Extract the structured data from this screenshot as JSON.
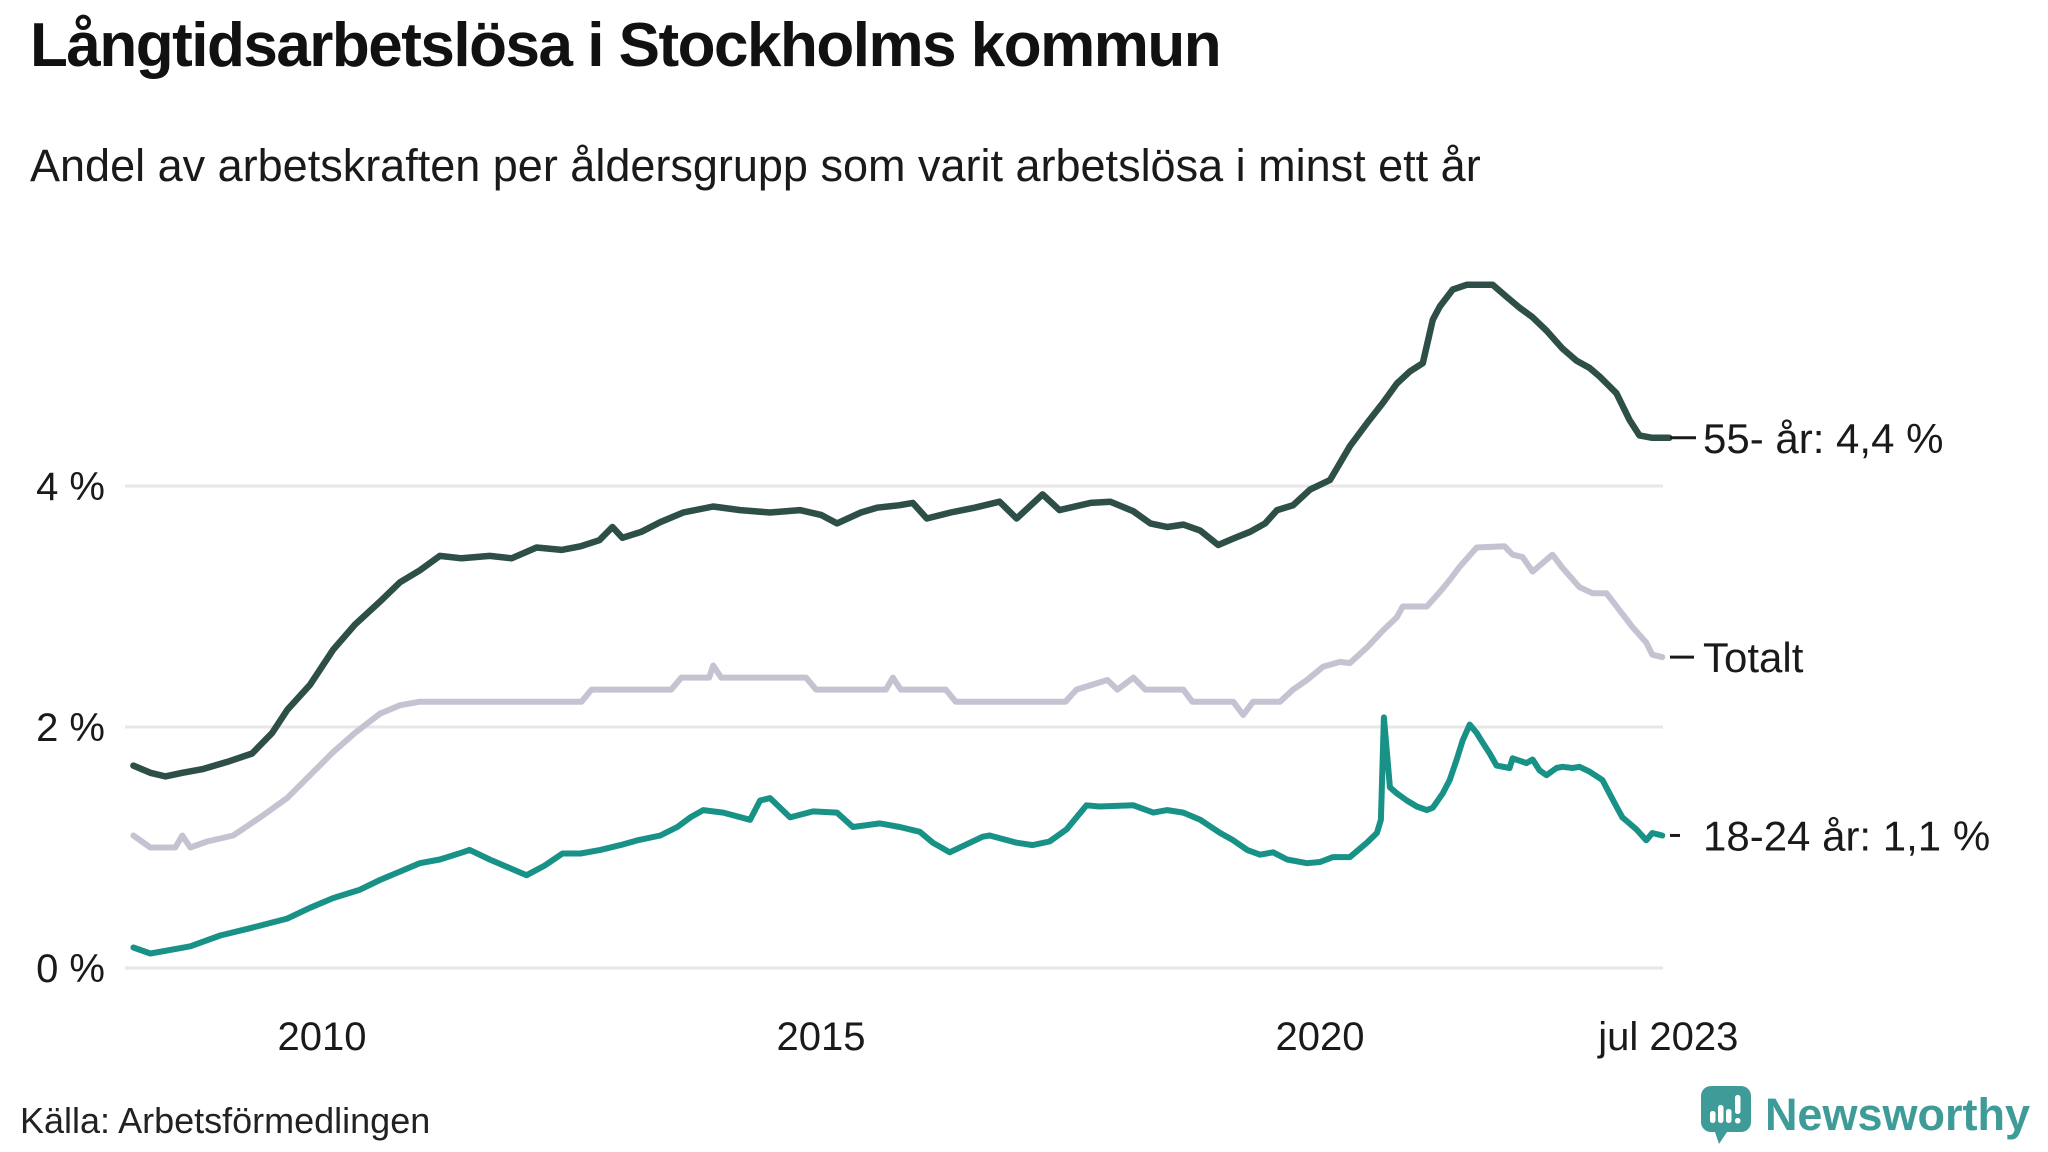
{
  "header": {
    "title": "Långtidsarbetslösa i Stockholms kommun",
    "subtitle": "Andel av arbetskraften per åldersgrupp som varit arbetslösa i minst ett år"
  },
  "footer": {
    "source": "Källa: Arbetsförmedlingen",
    "brand": "Newsworthy"
  },
  "colors": {
    "series_55": "#2e4f47",
    "series_total": "#c5c3d1",
    "series_18_24": "#189286",
    "gridline": "#e7e7ea",
    "text": "#1a1a1a",
    "brand_teal": "#3e9b97"
  },
  "chart_data": {
    "type": "line",
    "title": "Långtidsarbetslösa i Stockholms kommun",
    "subtitle": "Andel av arbetskraften per åldersgrupp som varit arbetslösa i minst ett år",
    "y_unit": "%",
    "ylim": [
      0,
      6.2
    ],
    "x_range": [
      2008.0,
      2023.6
    ],
    "grid": "horizontal-only",
    "legend_position": "line-end-labels",
    "y_ticks": [
      {
        "value": 0,
        "label": "0 %"
      },
      {
        "value": 2,
        "label": "2 %"
      },
      {
        "value": 4,
        "label": "4 %"
      }
    ],
    "x_ticks": [
      {
        "t": 2010,
        "label": "2010"
      },
      {
        "t": 2015,
        "label": "2015"
      },
      {
        "t": 2020,
        "label": "2020"
      },
      {
        "t": 2023.49,
        "label": "jul 2023"
      }
    ],
    "series": [
      {
        "name": "55- år",
        "end_label": "55- år: 4,4 %",
        "current_value": "4,4 %",
        "color": "#2e4f47",
        "points": [
          [
            2008.11,
            1.68
          ],
          [
            2008.28,
            1.62
          ],
          [
            2008.43,
            1.59
          ],
          [
            2008.6,
            1.62
          ],
          [
            2008.8,
            1.65
          ],
          [
            2009.05,
            1.71
          ],
          [
            2009.3,
            1.78
          ],
          [
            2009.5,
            1.95
          ],
          [
            2009.65,
            2.14
          ],
          [
            2009.88,
            2.35
          ],
          [
            2010.11,
            2.64
          ],
          [
            2010.33,
            2.85
          ],
          [
            2010.58,
            3.04
          ],
          [
            2010.78,
            3.2
          ],
          [
            2010.98,
            3.3
          ],
          [
            2011.18,
            3.42
          ],
          [
            2011.4,
            3.4
          ],
          [
            2011.68,
            3.42
          ],
          [
            2011.9,
            3.4
          ],
          [
            2012.15,
            3.49
          ],
          [
            2012.4,
            3.47
          ],
          [
            2012.59,
            3.5
          ],
          [
            2012.78,
            3.55
          ],
          [
            2012.91,
            3.66
          ],
          [
            2013.01,
            3.57
          ],
          [
            2013.2,
            3.62
          ],
          [
            2013.39,
            3.7
          ],
          [
            2013.62,
            3.78
          ],
          [
            2013.92,
            3.83
          ],
          [
            2014.19,
            3.8
          ],
          [
            2014.49,
            3.78
          ],
          [
            2014.79,
            3.8
          ],
          [
            2015.0,
            3.76
          ],
          [
            2015.16,
            3.69
          ],
          [
            2015.4,
            3.78
          ],
          [
            2015.56,
            3.82
          ],
          [
            2015.78,
            3.84
          ],
          [
            2015.92,
            3.86
          ],
          [
            2016.06,
            3.73
          ],
          [
            2016.3,
            3.78
          ],
          [
            2016.54,
            3.82
          ],
          [
            2016.79,
            3.87
          ],
          [
            2016.96,
            3.73
          ],
          [
            2017.22,
            3.93
          ],
          [
            2017.39,
            3.8
          ],
          [
            2017.7,
            3.86
          ],
          [
            2017.9,
            3.87
          ],
          [
            2018.13,
            3.79
          ],
          [
            2018.3,
            3.69
          ],
          [
            2018.47,
            3.66
          ],
          [
            2018.63,
            3.68
          ],
          [
            2018.8,
            3.63
          ],
          [
            2018.98,
            3.51
          ],
          [
            2019.15,
            3.57
          ],
          [
            2019.3,
            3.62
          ],
          [
            2019.45,
            3.69
          ],
          [
            2019.57,
            3.8
          ],
          [
            2019.73,
            3.84
          ],
          [
            2019.9,
            3.97
          ],
          [
            2020.1,
            4.05
          ],
          [
            2020.3,
            4.33
          ],
          [
            2020.47,
            4.52
          ],
          [
            2020.63,
            4.69
          ],
          [
            2020.77,
            4.85
          ],
          [
            2020.9,
            4.95
          ],
          [
            2021.03,
            5.02
          ],
          [
            2021.13,
            5.38
          ],
          [
            2021.2,
            5.49
          ],
          [
            2021.33,
            5.63
          ],
          [
            2021.47,
            5.67
          ],
          [
            2021.73,
            5.67
          ],
          [
            2021.87,
            5.57
          ],
          [
            2022.0,
            5.48
          ],
          [
            2022.13,
            5.4
          ],
          [
            2022.27,
            5.29
          ],
          [
            2022.43,
            5.14
          ],
          [
            2022.57,
            5.04
          ],
          [
            2022.7,
            4.98
          ],
          [
            2022.8,
            4.91
          ],
          [
            2022.97,
            4.77
          ],
          [
            2023.1,
            4.55
          ],
          [
            2023.2,
            4.42
          ],
          [
            2023.33,
            4.4
          ],
          [
            2023.5,
            4.4
          ]
        ]
      },
      {
        "name": "Totalt",
        "end_label": "Totalt",
        "current_value": "2,6 %",
        "color": "#c5c3d1",
        "points": [
          [
            2008.11,
            1.1
          ],
          [
            2008.28,
            1.0
          ],
          [
            2008.53,
            1.0
          ],
          [
            2008.6,
            1.1
          ],
          [
            2008.68,
            1.0
          ],
          [
            2008.85,
            1.05
          ],
          [
            2009.11,
            1.1
          ],
          [
            2009.38,
            1.25
          ],
          [
            2009.65,
            1.41
          ],
          [
            2009.88,
            1.6
          ],
          [
            2010.11,
            1.79
          ],
          [
            2010.33,
            1.95
          ],
          [
            2010.58,
            2.11
          ],
          [
            2010.78,
            2.18
          ],
          [
            2010.98,
            2.21
          ],
          [
            2011.5,
            2.21
          ],
          [
            2012.6,
            2.21
          ],
          [
            2012.7,
            2.31
          ],
          [
            2013.5,
            2.31
          ],
          [
            2013.6,
            2.41
          ],
          [
            2013.88,
            2.41
          ],
          [
            2013.92,
            2.51
          ],
          [
            2014.0,
            2.41
          ],
          [
            2014.85,
            2.41
          ],
          [
            2014.95,
            2.31
          ],
          [
            2015.65,
            2.31
          ],
          [
            2015.72,
            2.41
          ],
          [
            2015.8,
            2.31
          ],
          [
            2016.25,
            2.31
          ],
          [
            2016.35,
            2.21
          ],
          [
            2017.45,
            2.21
          ],
          [
            2017.56,
            2.31
          ],
          [
            2017.87,
            2.39
          ],
          [
            2017.97,
            2.31
          ],
          [
            2018.13,
            2.41
          ],
          [
            2018.25,
            2.31
          ],
          [
            2018.63,
            2.31
          ],
          [
            2018.72,
            2.21
          ],
          [
            2019.13,
            2.21
          ],
          [
            2019.23,
            2.1
          ],
          [
            2019.33,
            2.21
          ],
          [
            2019.6,
            2.21
          ],
          [
            2019.73,
            2.31
          ],
          [
            2019.87,
            2.39
          ],
          [
            2020.03,
            2.5
          ],
          [
            2020.2,
            2.54
          ],
          [
            2020.3,
            2.53
          ],
          [
            2020.47,
            2.66
          ],
          [
            2020.63,
            2.8
          ],
          [
            2020.77,
            2.91
          ],
          [
            2020.83,
            3.0
          ],
          [
            2021.07,
            3.0
          ],
          [
            2021.2,
            3.12
          ],
          [
            2021.3,
            3.22
          ],
          [
            2021.4,
            3.33
          ],
          [
            2021.57,
            3.49
          ],
          [
            2021.85,
            3.5
          ],
          [
            2021.93,
            3.43
          ],
          [
            2022.03,
            3.41
          ],
          [
            2022.13,
            3.29
          ],
          [
            2022.3,
            3.41
          ],
          [
            2022.33,
            3.43
          ],
          [
            2022.43,
            3.32
          ],
          [
            2022.6,
            3.16
          ],
          [
            2022.73,
            3.11
          ],
          [
            2022.87,
            3.11
          ],
          [
            2023.0,
            2.97
          ],
          [
            2023.13,
            2.83
          ],
          [
            2023.27,
            2.7
          ],
          [
            2023.33,
            2.6
          ],
          [
            2023.43,
            2.58
          ]
        ]
      },
      {
        "name": "18-24 år",
        "end_label": "18-24 år: 1,1 %",
        "current_value": "1,1 %",
        "color": "#189286",
        "points": [
          [
            2008.11,
            0.17
          ],
          [
            2008.28,
            0.12
          ],
          [
            2008.48,
            0.15
          ],
          [
            2008.68,
            0.18
          ],
          [
            2008.98,
            0.27
          ],
          [
            2009.28,
            0.33
          ],
          [
            2009.65,
            0.41
          ],
          [
            2009.88,
            0.5
          ],
          [
            2010.11,
            0.58
          ],
          [
            2010.38,
            0.65
          ],
          [
            2010.58,
            0.73
          ],
          [
            2010.78,
            0.8
          ],
          [
            2010.98,
            0.87
          ],
          [
            2011.18,
            0.9
          ],
          [
            2011.41,
            0.96
          ],
          [
            2011.48,
            0.98
          ],
          [
            2011.68,
            0.9
          ],
          [
            2011.88,
            0.83
          ],
          [
            2012.05,
            0.77
          ],
          [
            2012.23,
            0.85
          ],
          [
            2012.41,
            0.95
          ],
          [
            2012.59,
            0.95
          ],
          [
            2012.79,
            0.98
          ],
          [
            2012.99,
            1.02
          ],
          [
            2013.16,
            1.06
          ],
          [
            2013.39,
            1.1
          ],
          [
            2013.56,
            1.17
          ],
          [
            2013.69,
            1.25
          ],
          [
            2013.82,
            1.31
          ],
          [
            2014.02,
            1.29
          ],
          [
            2014.29,
            1.23
          ],
          [
            2014.39,
            1.39
          ],
          [
            2014.49,
            1.41
          ],
          [
            2014.69,
            1.25
          ],
          [
            2014.92,
            1.3
          ],
          [
            2015.16,
            1.29
          ],
          [
            2015.32,
            1.17
          ],
          [
            2015.59,
            1.2
          ],
          [
            2015.79,
            1.17
          ],
          [
            2015.99,
            1.13
          ],
          [
            2016.12,
            1.04
          ],
          [
            2016.29,
            0.96
          ],
          [
            2016.62,
            1.09
          ],
          [
            2016.69,
            1.1
          ],
          [
            2016.96,
            1.04
          ],
          [
            2017.12,
            1.02
          ],
          [
            2017.29,
            1.05
          ],
          [
            2017.46,
            1.15
          ],
          [
            2017.66,
            1.35
          ],
          [
            2017.79,
            1.34
          ],
          [
            2018.13,
            1.35
          ],
          [
            2018.33,
            1.29
          ],
          [
            2018.47,
            1.31
          ],
          [
            2018.63,
            1.29
          ],
          [
            2018.8,
            1.23
          ],
          [
            2019.0,
            1.12
          ],
          [
            2019.13,
            1.06
          ],
          [
            2019.27,
            0.98
          ],
          [
            2019.4,
            0.94
          ],
          [
            2019.53,
            0.96
          ],
          [
            2019.67,
            0.9
          ],
          [
            2019.87,
            0.87
          ],
          [
            2020.0,
            0.88
          ],
          [
            2020.13,
            0.92
          ],
          [
            2020.3,
            0.92
          ],
          [
            2020.47,
            1.04
          ],
          [
            2020.57,
            1.12
          ],
          [
            2020.61,
            1.23
          ],
          [
            2020.64,
            2.08
          ],
          [
            2020.7,
            1.5
          ],
          [
            2020.77,
            1.45
          ],
          [
            2020.87,
            1.39
          ],
          [
            2020.97,
            1.34
          ],
          [
            2021.07,
            1.31
          ],
          [
            2021.13,
            1.33
          ],
          [
            2021.23,
            1.45
          ],
          [
            2021.3,
            1.56
          ],
          [
            2021.37,
            1.73
          ],
          [
            2021.43,
            1.89
          ],
          [
            2021.5,
            2.02
          ],
          [
            2021.57,
            1.95
          ],
          [
            2021.63,
            1.87
          ],
          [
            2021.7,
            1.78
          ],
          [
            2021.77,
            1.68
          ],
          [
            2021.9,
            1.66
          ],
          [
            2021.93,
            1.74
          ],
          [
            2022.07,
            1.7
          ],
          [
            2022.13,
            1.73
          ],
          [
            2022.2,
            1.64
          ],
          [
            2022.27,
            1.6
          ],
          [
            2022.37,
            1.66
          ],
          [
            2022.43,
            1.67
          ],
          [
            2022.53,
            1.66
          ],
          [
            2022.6,
            1.67
          ],
          [
            2022.7,
            1.63
          ],
          [
            2022.83,
            1.56
          ],
          [
            2022.9,
            1.45
          ],
          [
            2022.97,
            1.34
          ],
          [
            2023.03,
            1.25
          ],
          [
            2023.1,
            1.2
          ],
          [
            2023.17,
            1.15
          ],
          [
            2023.27,
            1.06
          ],
          [
            2023.33,
            1.12
          ],
          [
            2023.43,
            1.1
          ]
        ]
      }
    ]
  }
}
